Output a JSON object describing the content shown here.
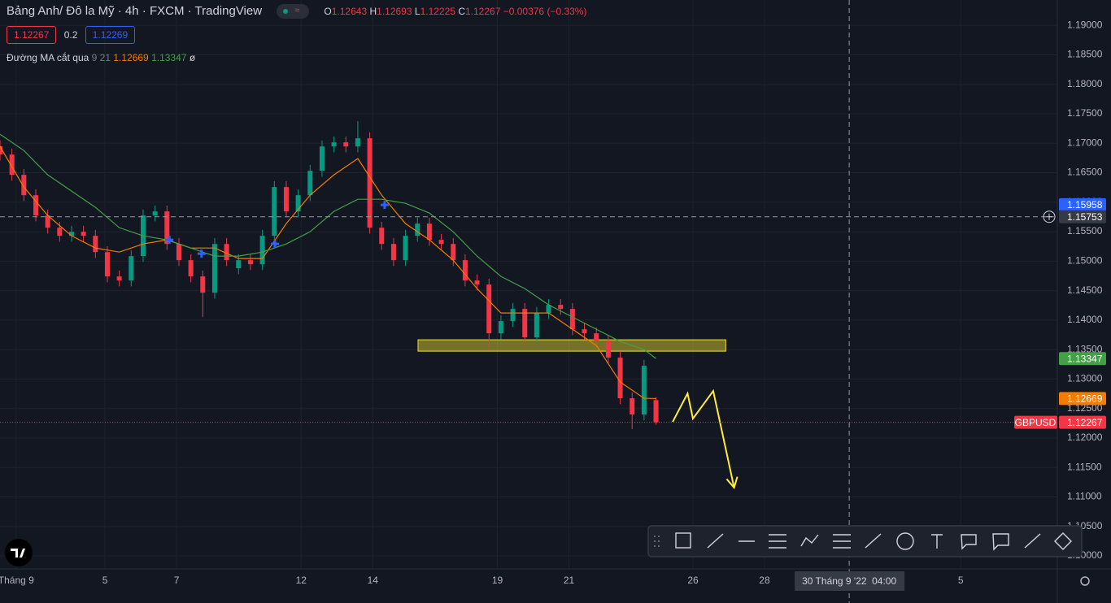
{
  "header": {
    "symbol": "Bảng Anh/ Đô la Mỹ",
    "interval": "4h",
    "exchange": "FXCM",
    "source": "TradingView",
    "o_label": "O",
    "h_label": "H",
    "l_label": "L",
    "c_label": "C",
    "change": "−0.00376 (−0.33%)",
    "spread": 0.2,
    "ask": 1.12269
  },
  "chart_data": {
    "type": "candlestick",
    "symbol_label": "GBPUSD",
    "color_up": "#089981",
    "color_down": "#f23645",
    "grid": true,
    "x": [
      0,
      2,
      4,
      6,
      8,
      10,
      12,
      14,
      16,
      18,
      20,
      22,
      24,
      26,
      28,
      30,
      32,
      34,
      36,
      38,
      40,
      42,
      44,
      46,
      48,
      50,
      52,
      54,
      56,
      58,
      60,
      62,
      64,
      66,
      68,
      70,
      72,
      74,
      76,
      78,
      80,
      82,
      84,
      86,
      88,
      90,
      92,
      94,
      96,
      98,
      100,
      102,
      104,
      106,
      108,
      110
    ],
    "open": [
      1.1695,
      1.16808,
      1.16464,
      1.16119,
      1.15775,
      1.15568,
      1.1543,
      1.15499,
      1.1543,
      1.15154,
      1.14741,
      1.14672,
      1.15086,
      1.15775,
      1.15844,
      1.15292,
      1.15017,
      1.14741,
      1.14465,
      1.15292,
      1.1488,
      1.15017,
      1.14948,
      1.1543,
      1.16257,
      1.15844,
      1.16119,
      1.16533,
      1.16946,
      1.17015,
      1.16946,
      1.17084,
      1.15568,
      1.15292,
      1.15017,
      1.1543,
      1.15637,
      1.15361,
      1.15292,
      1.15017,
      1.14672,
      1.14603,
      1.13776,
      1.13983,
      1.1419,
      1.13707,
      1.1412,
      1.14258,
      1.1419,
      1.13845,
      1.13776,
      1.13638,
      1.13363,
      1.12674,
      1.12398,
      1.12643
    ],
    "high": [
      1.1705,
      1.16908,
      1.16564,
      1.16219,
      1.15875,
      1.15668,
      1.15599,
      1.15599,
      1.1553,
      1.15254,
      1.14841,
      1.15186,
      1.15875,
      1.15944,
      1.15944,
      1.15392,
      1.15117,
      1.14841,
      1.15392,
      1.15392,
      1.15117,
      1.15117,
      1.1553,
      1.16357,
      1.16357,
      1.16219,
      1.16633,
      1.17046,
      1.17115,
      1.17115,
      1.17375,
      1.17184,
      1.15668,
      1.15392,
      1.1553,
      1.15737,
      1.15737,
      1.15461,
      1.15392,
      1.15117,
      1.14772,
      1.14703,
      1.14083,
      1.1429,
      1.1429,
      1.1422,
      1.14358,
      1.14358,
      1.1429,
      1.13945,
      1.13876,
      1.13738,
      1.13463,
      1.12774,
      1.13325,
      1.12693
    ],
    "low": [
      1.16708,
      1.16364,
      1.16019,
      1.15675,
      1.15468,
      1.1533,
      1.1533,
      1.1533,
      1.15054,
      1.14641,
      1.14572,
      1.14572,
      1.14986,
      1.15675,
      1.15192,
      1.14917,
      1.14641,
      1.14052,
      1.14365,
      1.14917,
      1.1478,
      1.14848,
      1.14848,
      1.1533,
      1.15744,
      1.15744,
      1.16019,
      1.16433,
      1.16846,
      1.16846,
      1.16846,
      1.15468,
      1.15192,
      1.14917,
      1.14917,
      1.1533,
      1.15261,
      1.15192,
      1.14917,
      1.14572,
      1.14503,
      1.13501,
      1.13676,
      1.13883,
      1.13607,
      1.13607,
      1.1402,
      1.1409,
      1.13745,
      1.13676,
      1.13538,
      1.13263,
      1.12574,
      1.1215,
      1.12298,
      1.12225
    ],
    "close": [
      1.16808,
      1.16464,
      1.16119,
      1.15775,
      1.15568,
      1.1543,
      1.15499,
      1.1543,
      1.15154,
      1.14741,
      1.14672,
      1.15086,
      1.15775,
      1.15844,
      1.15292,
      1.15017,
      1.14741,
      1.14465,
      1.15292,
      1.15017,
      1.15017,
      1.14948,
      1.1543,
      1.16257,
      1.15844,
      1.16119,
      1.16533,
      1.16946,
      1.17015,
      1.16946,
      1.17084,
      1.15568,
      1.15292,
      1.15017,
      1.1543,
      1.15637,
      1.15361,
      1.15292,
      1.15017,
      1.14672,
      1.14603,
      1.13776,
      1.13983,
      1.1419,
      1.13707,
      1.1412,
      1.14258,
      1.1419,
      1.13845,
      1.13776,
      1.13638,
      1.13363,
      1.12674,
      1.12398,
      1.13225,
      1.12267
    ],
    "xlim": [
      0,
      177.3
    ],
    "xticks": [
      {
        "value": 2.7,
        "label": "Tháng 9"
      },
      {
        "value": 17.6,
        "label": "5"
      },
      {
        "value": 29.6,
        "label": "7"
      },
      {
        "value": 50.5,
        "label": "12"
      },
      {
        "value": 62.5,
        "label": "14"
      },
      {
        "value": 83.4,
        "label": "19"
      },
      {
        "value": 95.4,
        "label": "21"
      },
      {
        "value": 116.2,
        "label": "26"
      },
      {
        "value": 128.2,
        "label": "28"
      },
      {
        "value": 161.1,
        "label": "5"
      }
    ],
    "ylim": [
      1.0978,
      1.1943
    ],
    "yticks": [
      {
        "value": 1.19,
        "label": "1.19000"
      },
      {
        "value": 1.185,
        "label": "1.18500"
      },
      {
        "value": 1.18,
        "label": "1.18000"
      },
      {
        "value": 1.175,
        "label": "1.17500"
      },
      {
        "value": 1.17,
        "label": "1.17000"
      },
      {
        "value": 1.165,
        "label": "1.16500"
      },
      {
        "value": 1.16,
        "label": "1.16000"
      },
      {
        "value": 1.155,
        "label": "1.15500"
      },
      {
        "value": 1.15,
        "label": "1.15000"
      },
      {
        "value": 1.145,
        "label": "1.14500"
      },
      {
        "value": 1.14,
        "label": "1.14000"
      },
      {
        "value": 1.135,
        "label": "1.13500"
      },
      {
        "value": 1.13,
        "label": "1.13000"
      },
      {
        "value": 1.125,
        "label": "1.12500"
      },
      {
        "value": 1.12,
        "label": "1.12000"
      },
      {
        "value": 1.115,
        "label": "1.11500"
      },
      {
        "value": 1.11,
        "label": "1.11000"
      },
      {
        "value": 1.105,
        "label": "1.10500"
      },
      {
        "value": 1.1,
        "label": "1.10000"
      }
    ],
    "indicator": {
      "name": "Đường MA cắt qua",
      "params": "9 21",
      "status": "ø"
    },
    "series": [
      {
        "color": "#f57c00",
        "x": [
          0,
          4,
          8,
          12,
          16,
          20,
          24,
          28,
          32,
          36,
          40,
          44,
          48,
          52,
          56,
          60,
          64,
          68,
          72,
          76,
          80,
          84,
          88,
          92,
          96,
          100,
          104,
          108,
          110
        ],
        "values": [
          1.16946,
          1.16257,
          1.15775,
          1.1543,
          1.15223,
          1.15154,
          1.15292,
          1.15361,
          1.15223,
          1.15223,
          1.15044,
          1.15044,
          1.15637,
          1.16119,
          1.16464,
          1.1674,
          1.16119,
          1.15637,
          1.15361,
          1.15017,
          1.14534,
          1.14121,
          1.14121,
          1.14121,
          1.13845,
          1.1357,
          1.12949,
          1.12674,
          1.12669
        ]
      },
      {
        "color": "#43a047",
        "x": [
          0,
          4,
          8,
          12,
          16,
          20,
          24,
          28,
          32,
          36,
          40,
          44,
          48,
          52,
          56,
          60,
          64,
          68,
          72,
          76,
          80,
          84,
          88,
          92,
          96,
          100,
          104,
          108,
          110
        ],
        "values": [
          1.17153,
          1.16877,
          1.16464,
          1.16188,
          1.15913,
          1.15568,
          1.1543,
          1.15361,
          1.15223,
          1.15086,
          1.15086,
          1.15154,
          1.15292,
          1.15499,
          1.15844,
          1.1605,
          1.1605,
          1.15981,
          1.15816,
          1.15499,
          1.15086,
          1.14741,
          1.14534,
          1.14259,
          1.14052,
          1.13845,
          1.13638,
          1.13501,
          1.13347
        ]
      }
    ],
    "cross_markers": {
      "color": "#2962ff",
      "x": [
        28.4,
        33.8,
        46.1,
        64.5
      ],
      "y": [
        1.15361,
        1.15127,
        1.15292,
        1.15954
      ]
    },
    "zone": {
      "color": "#f0e130",
      "x": [
        70.1,
        121.7
      ],
      "y": [
        1.13473,
        1.13666
      ]
    },
    "projection": {
      "color": "#ffeb3b",
      "x": [
        112.8,
        115.3,
        116.2,
        119.6,
        123.1
      ],
      "y": [
        1.12274,
        1.12756,
        1.12329,
        1.12798,
        1.11158
      ]
    },
    "price_marker": {
      "value": 1.15958,
      "color": "#2962ff"
    },
    "crosshair": {
      "x": 142.4,
      "y": 1.15753,
      "date_label": "30 Tháng 9 '22",
      "time_label": "04:00"
    }
  }
}
